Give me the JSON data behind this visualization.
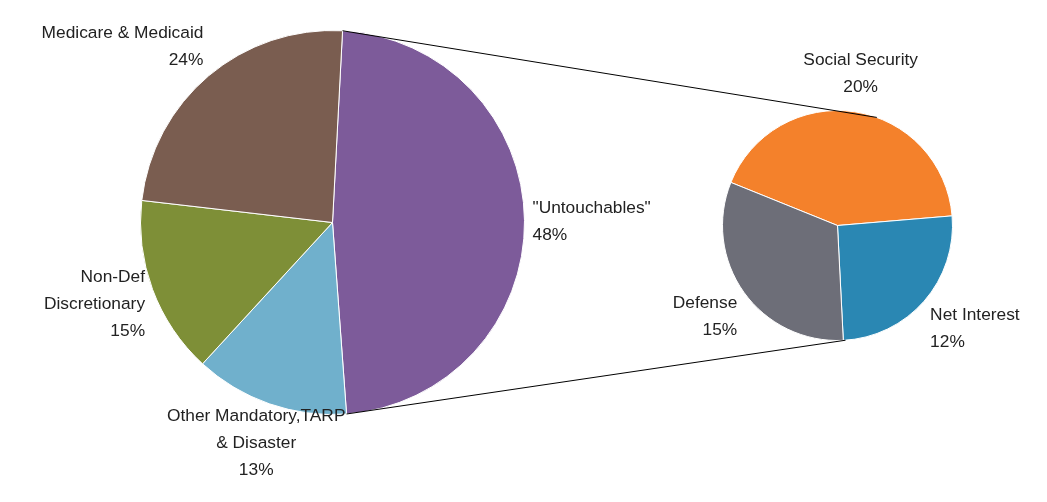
{
  "chart_data": [
    {
      "type": "pie",
      "categories": [
        "\"Untouchables\"",
        "Other Mandatory,TARP & Disaster",
        "Non-Def Discretionary",
        "Medicare & Medicaid"
      ],
      "values": [
        48,
        13,
        15,
        24
      ],
      "value_labels": [
        "48%",
        "13%",
        "15%",
        "24%"
      ],
      "colors": [
        "#7d5b9a",
        "#70b0cc",
        "#7e8f37",
        "#7a5d50"
      ]
    },
    {
      "type": "pie",
      "categories": [
        "Social Security",
        "Net Interest",
        "Defense"
      ],
      "values": [
        20,
        12,
        15
      ],
      "value_labels": [
        "20%",
        "12%",
        "15%"
      ],
      "colors": [
        "#f4812b",
        "#2a87b3",
        "#6d6e78"
      ]
    }
  ]
}
